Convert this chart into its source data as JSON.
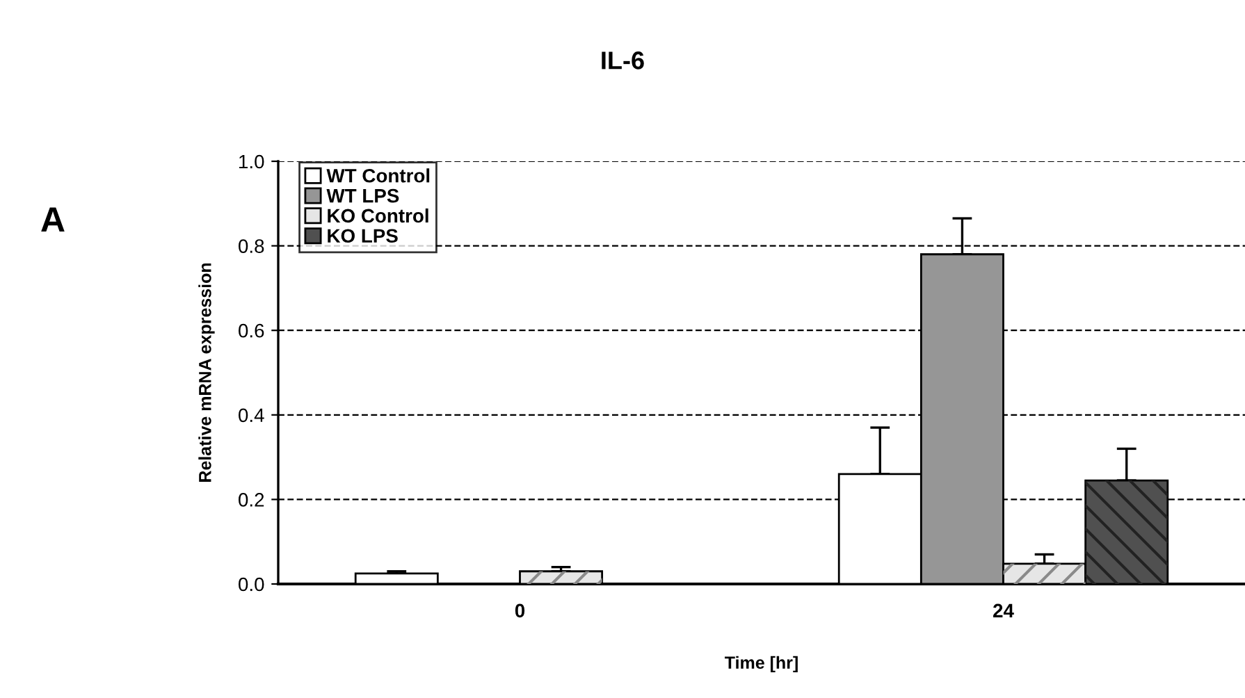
{
  "chart_data": {
    "type": "bar",
    "title": "IL-6",
    "xlabel": "Time [hr]",
    "ylabel": "Relative mRNA expression",
    "annotations": [
      "A"
    ],
    "categories": [
      "0",
      "24"
    ],
    "series": [
      {
        "name": "WT Control",
        "color": "#ffffff",
        "values": [
          0.025,
          0.26
        ],
        "errors": [
          [
            0.025,
            0.03
          ],
          [
            0.26,
            0.37
          ]
        ]
      },
      {
        "name": "WT LPS",
        "color": "#969696",
        "values": [
          null,
          0.78
        ],
        "errors": [
          null,
          [
            0.78,
            0.865
          ]
        ]
      },
      {
        "name": "KO Control",
        "color": "#e6e6e6",
        "values": [
          0.03,
          0.048
        ],
        "errors": [
          [
            0.03,
            0.04
          ],
          [
            0.048,
            0.07
          ]
        ]
      },
      {
        "name": "KO LPS",
        "color": "#505050",
        "values": [
          null,
          0.245
        ],
        "errors": [
          null,
          [
            0.245,
            0.32
          ]
        ]
      }
    ],
    "ylim": [
      0,
      1.0
    ],
    "yticks": [
      {
        "value": 0,
        "label": "0.0"
      },
      0.2,
      0.4,
      0.6,
      0.8,
      {
        "value": 1.0,
        "label": "1.0"
      }
    ],
    "grid": "y",
    "legend": "top left"
  }
}
